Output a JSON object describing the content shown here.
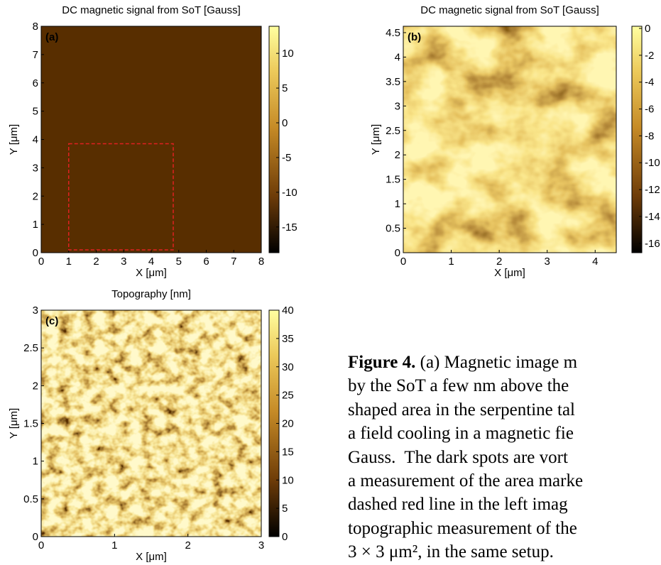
{
  "panels": [
    {
      "title": "DC magnetic signal from SoT [Gauss]",
      "label": "(a)",
      "xlabel": "X [μm]",
      "ylabel": "Y [μm]",
      "xlim": [
        0,
        8
      ],
      "ylim": [
        0,
        8
      ],
      "xticks": [
        0,
        1,
        2,
        3,
        4,
        5,
        6,
        7,
        8
      ],
      "yticks": [
        0,
        1,
        2,
        3,
        4,
        5,
        6,
        7,
        8
      ],
      "clim": [
        -18.7,
        13.9
      ],
      "cticks": [
        -15,
        -10,
        -5,
        0,
        5,
        10
      ],
      "marked_area": {
        "x": [
          1,
          4.8
        ],
        "y": [
          0.1,
          3.85
        ]
      }
    },
    {
      "title": "DC magnetic signal from SoT [Gauss]",
      "label": "(b)",
      "xlabel": "X [μm]",
      "ylabel": "Y [μm]",
      "xlim": [
        0,
        4.44
      ],
      "ylim": [
        0,
        4.63
      ],
      "xticks": [
        0,
        1,
        2,
        3,
        4
      ],
      "yticks": [
        0,
        0.5,
        1,
        1.5,
        2,
        2.5,
        3,
        3.5,
        4,
        4.5
      ],
      "clim": [
        -16.7,
        0.16
      ],
      "cticks": [
        -16,
        -14,
        -12,
        -10,
        -8,
        -6,
        -4,
        -2,
        0
      ]
    },
    {
      "title": "Topography [nm]",
      "label": "(c)",
      "xlabel": "X [μm]",
      "ylabel": "Y [μm]",
      "xlim": [
        0,
        3
      ],
      "ylim": [
        0,
        3
      ],
      "xticks": [
        0,
        1,
        2,
        3
      ],
      "yticks": [
        0,
        0.5,
        1,
        1.5,
        2,
        2.5,
        3
      ],
      "clim": [
        0,
        40
      ],
      "cticks": [
        0,
        5,
        10,
        15,
        20,
        25,
        30,
        35,
        40
      ]
    }
  ],
  "caption": {
    "label": "Figure 4.",
    "lines": [
      " (a) Magnetic image m",
      "by the SoT a few nm above the",
      "shaped area in the serpentine tal",
      "a field cooling in a magnetic fie",
      "Gauss.  The dark spots are vort",
      "a measurement of the area marke",
      "dashed red line in the left imag",
      "topographic measurement of the",
      "3 × 3 μm², in the same setup."
    ]
  }
}
